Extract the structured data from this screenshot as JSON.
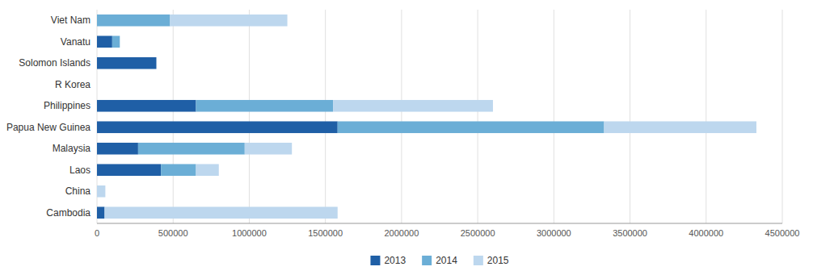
{
  "chart_data": {
    "type": "bar",
    "orientation": "horizontal",
    "stacked": true,
    "categories": [
      "Cambodia",
      "China",
      "Laos",
      "Malaysia",
      "Papua New Guinea",
      "Philippines",
      "R Korea",
      "Solomon Islands",
      "Vanatu",
      "Viet Nam"
    ],
    "series": [
      {
        "name": "2013",
        "color": "#1F5FA6",
        "values": [
          50000,
          0,
          420000,
          270000,
          1580000,
          650000,
          0,
          390000,
          100000,
          0
        ]
      },
      {
        "name": "2014",
        "color": "#6BAED6",
        "values": [
          0,
          0,
          230000,
          700000,
          1750000,
          900000,
          0,
          0,
          50000,
          480000
        ]
      },
      {
        "name": "2015",
        "color": "#BDD7EE",
        "values": [
          1530000,
          55000,
          150000,
          310000,
          1000000,
          1050000,
          0,
          0,
          0,
          770000
        ]
      }
    ],
    "xlim": [
      0,
      4500000
    ],
    "xticks": [
      0,
      500000,
      1000000,
      1500000,
      2000000,
      2500000,
      3000000,
      3500000,
      4000000,
      4500000
    ],
    "grid": true,
    "legend": "bottom"
  }
}
